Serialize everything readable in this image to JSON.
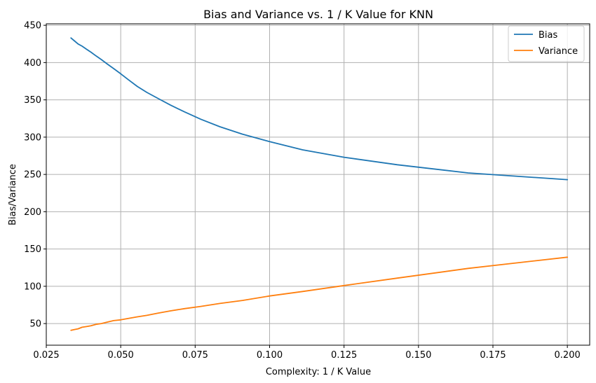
{
  "chart_data": {
    "type": "line",
    "title": "Bias and Variance vs. 1 / K Value for KNN",
    "xlabel": "Complexity: 1 / K Value",
    "ylabel": "Bias/Variance",
    "xlim": [
      0.025,
      0.2075
    ],
    "ylim": [
      21,
      452
    ],
    "xticks": [
      0.025,
      0.05,
      0.075,
      0.1,
      0.125,
      0.15,
      0.175,
      0.2
    ],
    "xtick_labels": [
      "0.025",
      "0.050",
      "0.075",
      "0.100",
      "0.125",
      "0.150",
      "0.175",
      "0.200"
    ],
    "yticks": [
      50,
      100,
      150,
      200,
      250,
      300,
      350,
      400,
      450
    ],
    "ytick_labels": [
      "50",
      "100",
      "150",
      "200",
      "250",
      "300",
      "350",
      "400",
      "450"
    ],
    "grid": true,
    "legend_position": "top-right",
    "x": [
      0.0333,
      0.0345,
      0.0357,
      0.037,
      0.0385,
      0.04,
      0.0417,
      0.0435,
      0.0455,
      0.0476,
      0.05,
      0.0526,
      0.0556,
      0.0588,
      0.0625,
      0.0667,
      0.0714,
      0.0769,
      0.0833,
      0.0909,
      0.1,
      0.1111,
      0.125,
      0.1429,
      0.1667,
      0.2
    ],
    "series": [
      {
        "name": "Bias",
        "color": "#1f77b4",
        "values": [
          433,
          429,
          425,
          422,
          418,
          414,
          409,
          404,
          398,
          392,
          385,
          377,
          368,
          360,
          352,
          343,
          334,
          324,
          314,
          304,
          294,
          283,
          273,
          263,
          252,
          243
        ]
      },
      {
        "name": "Variance",
        "color": "#ff7f0e",
        "values": [
          41,
          42,
          43,
          45,
          46,
          47,
          49,
          50,
          52,
          54,
          55,
          57,
          59,
          61,
          64,
          67,
          70,
          73,
          77,
          81,
          87,
          93,
          101,
          111,
          124,
          139
        ]
      }
    ]
  }
}
